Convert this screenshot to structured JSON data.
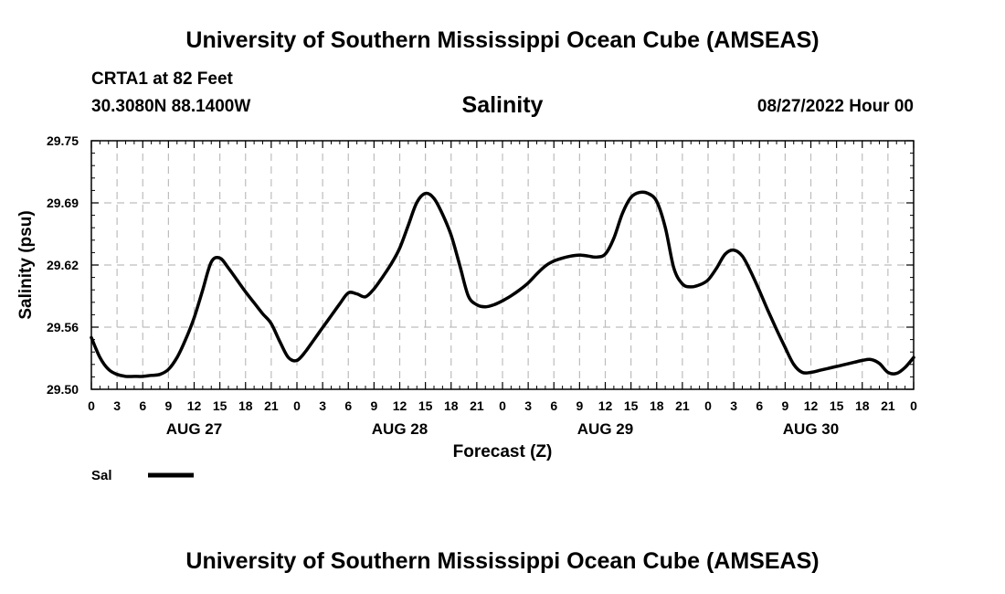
{
  "header": {
    "title": "University of Southern Mississippi Ocean Cube (AMSEAS)",
    "station": "CRTA1 at 82 Feet",
    "coords": "30.3080N  88.1400W",
    "datetime": "08/27/2022 Hour 00"
  },
  "footer": {
    "title": "University of Southern Mississippi Ocean Cube (AMSEAS)"
  },
  "chart_data": {
    "type": "line",
    "title": "Salinity",
    "xlabel": "Forecast (Z)",
    "ylabel": "Salinity (psu)",
    "ylim": [
      29.5,
      29.75
    ],
    "yticks": [
      "29.50",
      "29.56",
      "29.62",
      "29.69",
      "29.75"
    ],
    "xlim": [
      0,
      96
    ],
    "xtick_step": 3,
    "xtick_labels": [
      "0",
      "3",
      "6",
      "9",
      "12",
      "15",
      "18",
      "21",
      "0",
      "3",
      "6",
      "9",
      "12",
      "15",
      "18",
      "21",
      "0",
      "3",
      "6",
      "9",
      "12",
      "15",
      "18",
      "21",
      "0",
      "3",
      "6",
      "9",
      "12",
      "15",
      "18",
      "21",
      "0"
    ],
    "day_labels": [
      {
        "label": "AUG 27",
        "hour": 12
      },
      {
        "label": "AUG 28",
        "hour": 36
      },
      {
        "label": "AUG 29",
        "hour": 60
      },
      {
        "label": "AUG 30",
        "hour": 84
      }
    ],
    "grid": true,
    "line_color": "#000000",
    "series": [
      {
        "name": "Sal",
        "x": [
          0,
          1,
          2,
          3,
          4,
          5,
          6,
          7,
          8,
          9,
          10,
          11,
          12,
          13,
          14,
          15,
          16,
          17,
          18,
          19,
          20,
          21,
          22,
          23,
          24,
          25,
          26,
          27,
          28,
          29,
          30,
          31,
          32,
          33,
          34,
          35,
          36,
          37,
          38,
          39,
          40,
          41,
          42,
          43,
          44,
          45,
          46,
          47,
          48,
          49,
          50,
          51,
          52,
          53,
          54,
          55,
          56,
          57,
          58,
          59,
          60,
          61,
          62,
          63,
          64,
          65,
          66,
          67,
          68,
          69,
          70,
          71,
          72,
          73,
          74,
          75,
          76,
          77,
          78,
          79,
          80,
          81,
          82,
          83,
          84,
          85,
          86,
          87,
          88,
          89,
          90,
          91,
          92,
          93,
          94,
          95,
          96
        ],
        "values": [
          29.552,
          29.532,
          29.52,
          29.515,
          29.513,
          29.513,
          29.513,
          29.514,
          29.515,
          29.52,
          29.532,
          29.55,
          29.572,
          29.6,
          29.628,
          29.632,
          29.622,
          29.61,
          29.598,
          29.587,
          29.576,
          29.566,
          29.548,
          29.532,
          29.529,
          29.538,
          29.55,
          29.562,
          29.574,
          29.586,
          29.597,
          29.596,
          29.593,
          29.601,
          29.613,
          29.626,
          29.642,
          29.665,
          29.688,
          29.697,
          29.692,
          29.676,
          29.655,
          29.625,
          29.594,
          29.585,
          29.583,
          29.585,
          29.589,
          29.594,
          29.6,
          29.607,
          29.616,
          29.624,
          29.629,
          29.632,
          29.634,
          29.635,
          29.634,
          29.633,
          29.636,
          29.652,
          29.677,
          29.693,
          29.698,
          29.697,
          29.689,
          29.663,
          29.622,
          29.606,
          29.603,
          29.605,
          29.61,
          29.622,
          29.636,
          29.64,
          29.634,
          29.618,
          29.599,
          29.579,
          29.56,
          29.542,
          29.525,
          29.517,
          29.517,
          29.519,
          29.521,
          29.523,
          29.525,
          29.527,
          29.529,
          29.53,
          29.526,
          29.517,
          29.516,
          29.522,
          29.532
        ]
      }
    ],
    "legend": [
      {
        "label": "Sal"
      }
    ]
  }
}
